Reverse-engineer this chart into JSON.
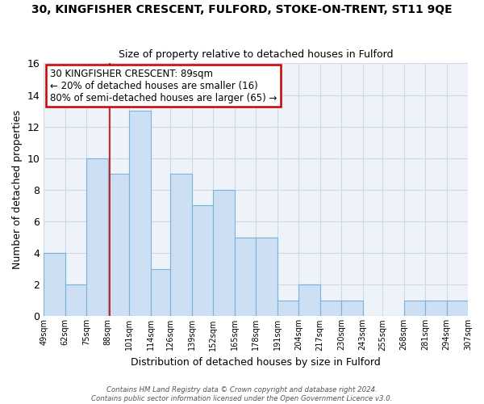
{
  "title": "30, KINGFISHER CRESCENT, FULFORD, STOKE-ON-TRENT, ST11 9QE",
  "subtitle": "Size of property relative to detached houses in Fulford",
  "xlabel": "Distribution of detached houses by size in Fulford",
  "ylabel": "Number of detached properties",
  "bin_edges": [
    49,
    62,
    75,
    88,
    101,
    114,
    126,
    139,
    152,
    165,
    178,
    191,
    204,
    217,
    230,
    243,
    255,
    268,
    281,
    294,
    307
  ],
  "bin_labels": [
    "49sqm",
    "62sqm",
    "75sqm",
    "88sqm",
    "101sqm",
    "114sqm",
    "126sqm",
    "139sqm",
    "152sqm",
    "165sqm",
    "178sqm",
    "191sqm",
    "204sqm",
    "217sqm",
    "230sqm",
    "243sqm",
    "255sqm",
    "268sqm",
    "281sqm",
    "294sqm",
    "307sqm"
  ],
  "counts": [
    4,
    2,
    10,
    9,
    13,
    3,
    9,
    7,
    8,
    5,
    5,
    1,
    2,
    1,
    1,
    0,
    0,
    1,
    1,
    1
  ],
  "bar_color": "#ccdff3",
  "bar_edge_color": "#7ab3d8",
  "property_line_x": 89,
  "property_line_color": "#cc0000",
  "annotation_title": "30 KINGFISHER CRESCENT: 89sqm",
  "annotation_line1": "← 20% of detached houses are smaller (16)",
  "annotation_line2": "80% of semi-detached houses are larger (65) →",
  "annotation_box_color": "#ffffff",
  "annotation_box_edge": "#cc0000",
  "grid_color": "#d0d8e8",
  "bg_color": "#eef3fa",
  "footer1": "Contains HM Land Registry data © Crown copyright and database right 2024.",
  "footer2": "Contains public sector information licensed under the Open Government Licence v3.0.",
  "ylim": [
    0,
    16
  ],
  "yticks": [
    0,
    2,
    4,
    6,
    8,
    10,
    12,
    14,
    16
  ]
}
